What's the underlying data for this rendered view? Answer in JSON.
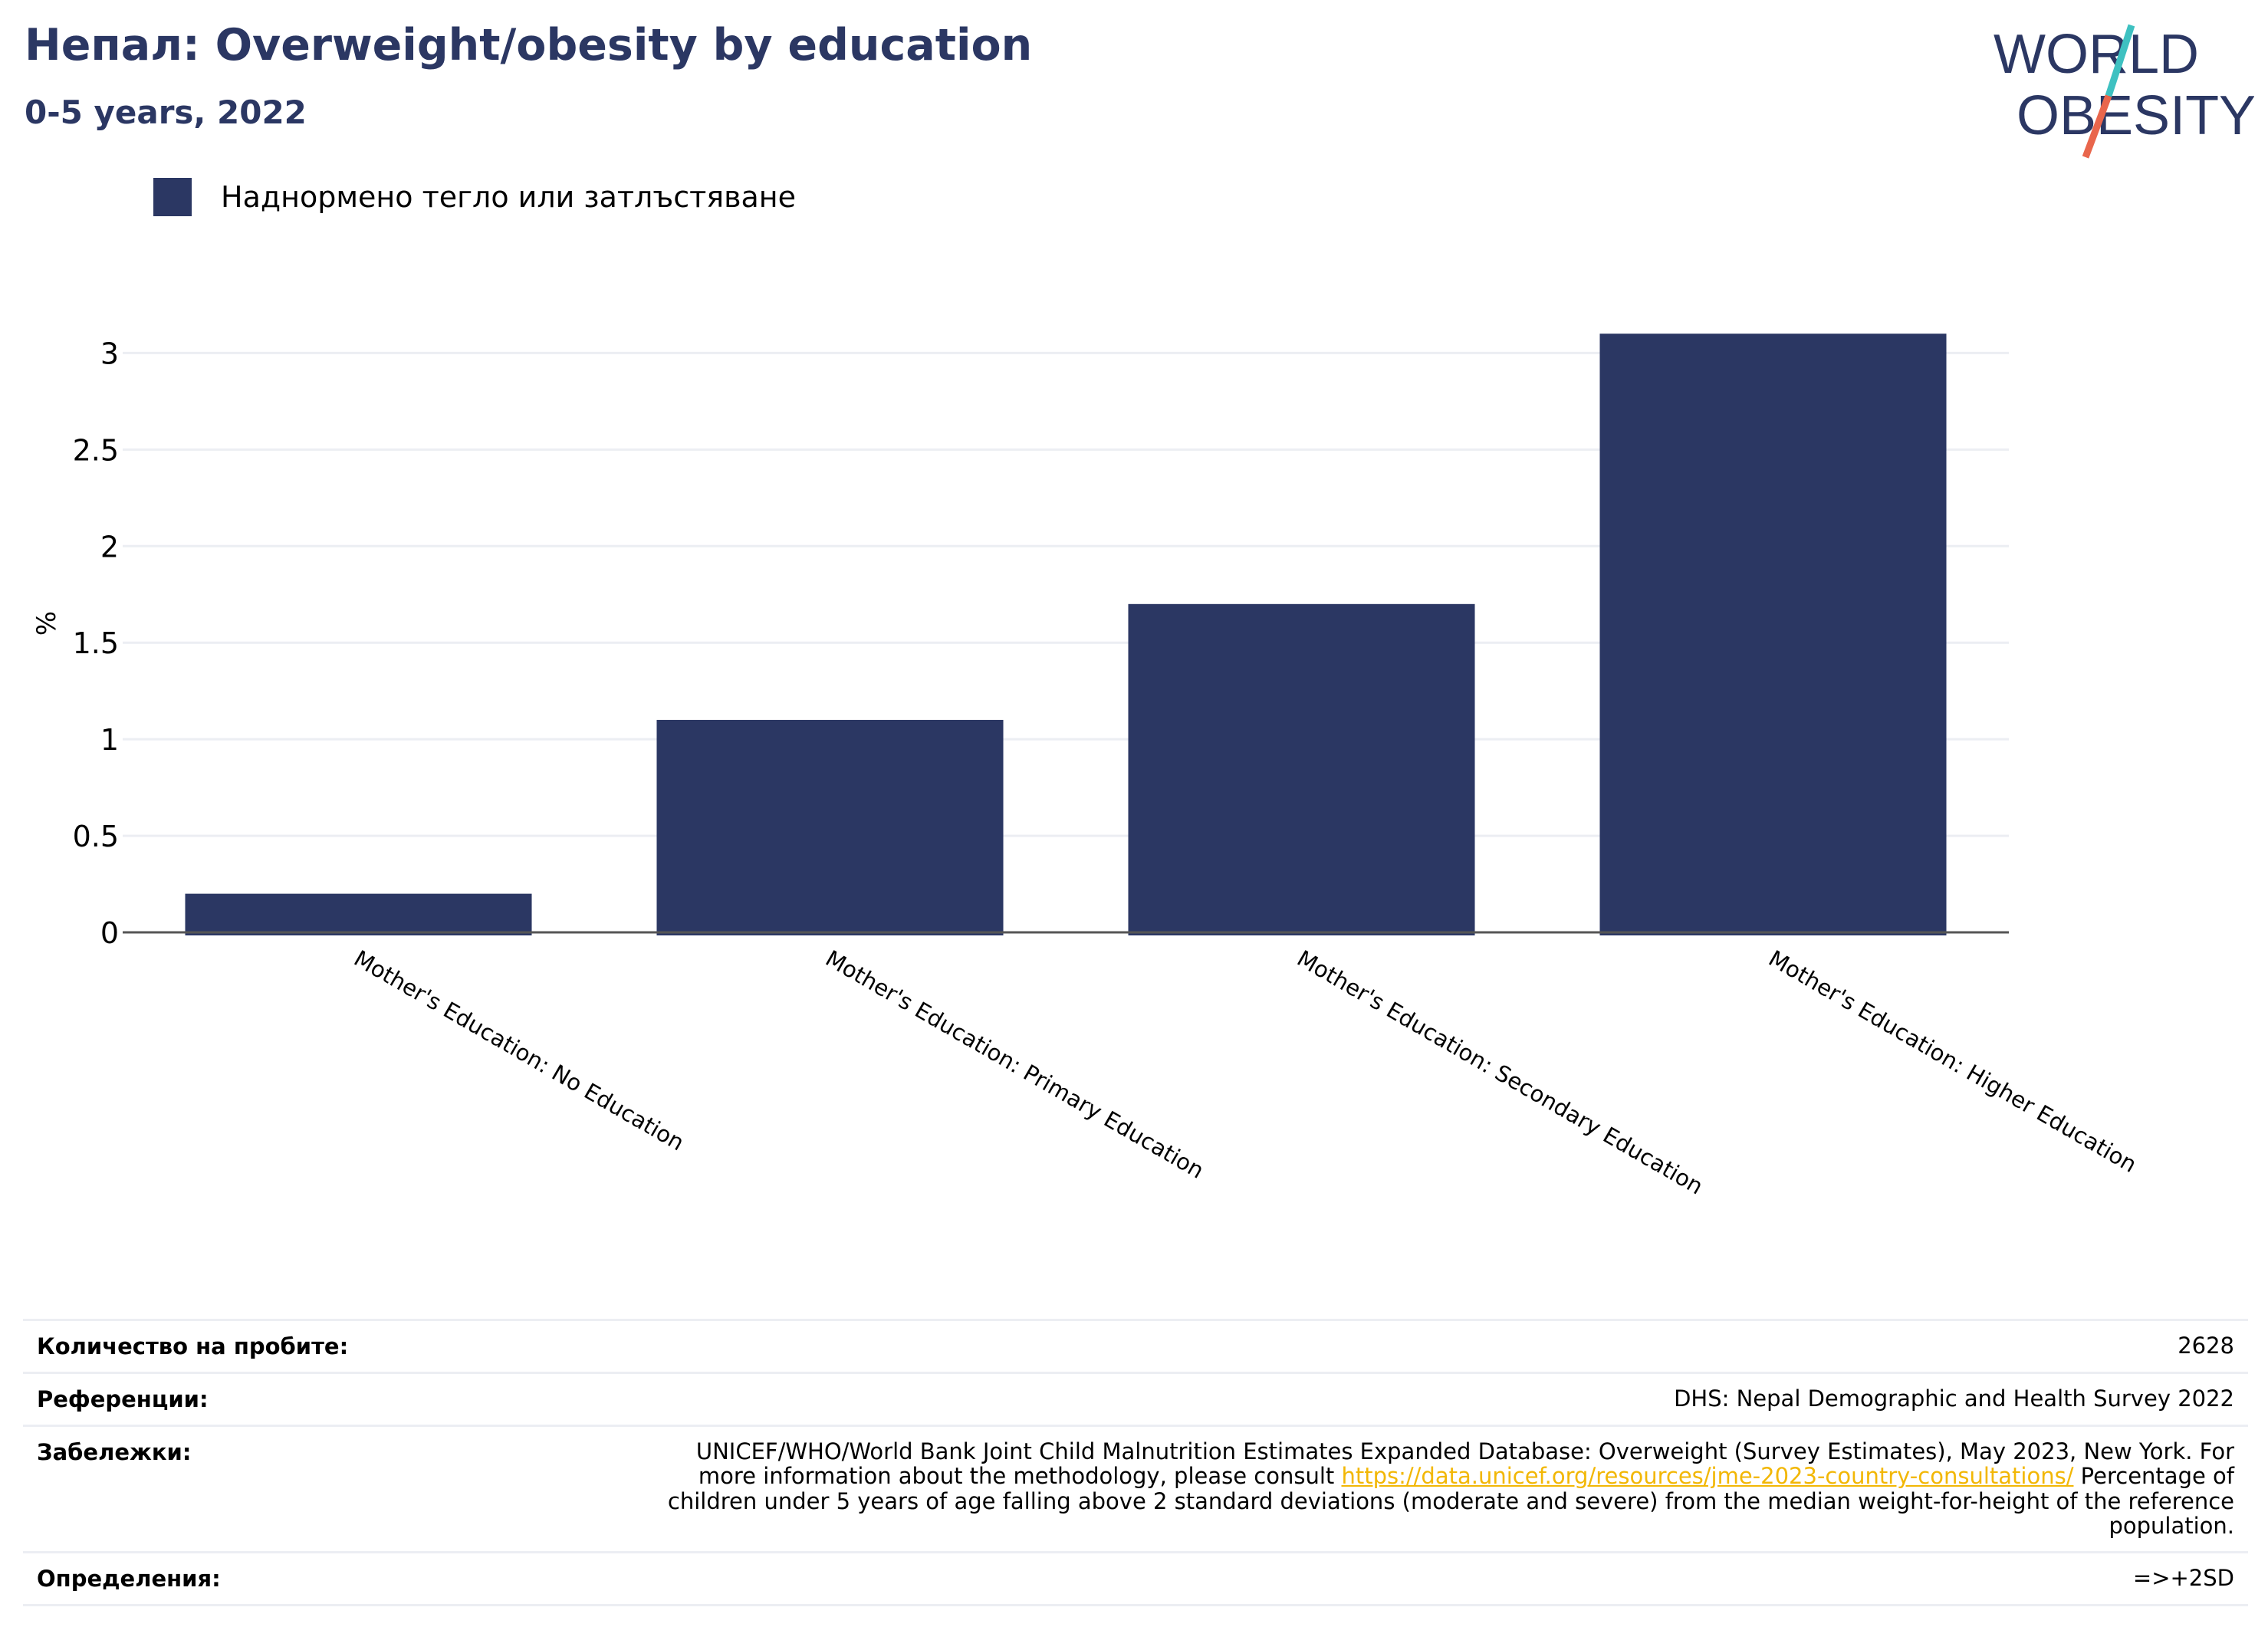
{
  "header": {
    "title": "Непал: Overweight/obesity by education",
    "subtitle": "0-5 years, 2022"
  },
  "logo": {
    "line1": "WORLD",
    "line2": "OBESITY"
  },
  "colors": {
    "bar": "#2b3763",
    "title": "#2b3763",
    "grid": "#eceef3",
    "link": "#f2b705"
  },
  "chart_data": {
    "type": "bar",
    "categories": [
      "Mother's Education: No Education",
      "Mother's Education: Primary Education",
      "Mother's Education: Secondary Education",
      "Mother's Education: Higher Education"
    ],
    "series": [
      {
        "name": "Наднормено тегло или затлъстяване",
        "values": [
          0.2,
          1.1,
          1.7,
          3.1
        ]
      }
    ],
    "ylabel": "%",
    "ylim": [
      0,
      3.2
    ],
    "yticks": [
      "0",
      "0.5",
      "1",
      "1.5",
      "2",
      "2.5",
      "3"
    ],
    "grid": true,
    "legend": "top-left"
  },
  "footer": {
    "rows": [
      {
        "key": "Количество на пробите:",
        "value": "2628"
      },
      {
        "key": "Референции:",
        "value": "DHS: Nepal Demographic and Health Survey 2022"
      },
      {
        "key": "Забележки:",
        "value_pre": "UNICEF/WHO/World Bank Joint Child Malnutrition Estimates Expanded Database: Overweight (Survey Estimates), May 2023, New York. For more information about the methodology, please consult ",
        "link": "https://data.unicef.org/resources/jme-2023-country-consultations/",
        "value_post": " Percentage of children under 5 years of age falling above 2 standard deviations (moderate and severe) from the median weight-for-height of the reference population."
      },
      {
        "key": "Определения:",
        "value": "=>+2SD"
      }
    ]
  }
}
